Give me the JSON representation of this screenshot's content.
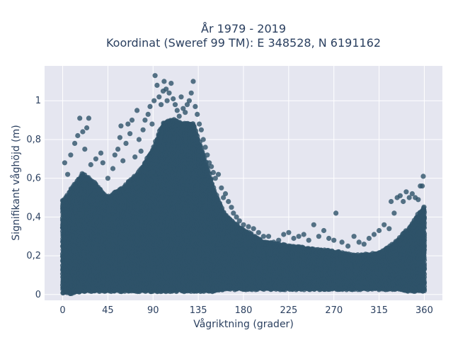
{
  "chart_data": {
    "type": "scatter",
    "title": [
      "År 1979 - 2019",
      "Koordinat (Sweref 99 TM): E 348528, N 6191162"
    ],
    "xlabel": "Vågriktning (grader)",
    "ylabel": "Signifikant våghöjd (m)",
    "xlim": [
      -18,
      378
    ],
    "ylim": [
      -0.03,
      1.18
    ],
    "xticks": [
      0,
      45,
      90,
      135,
      180,
      225,
      270,
      315,
      360
    ],
    "xtick_labels": [
      "0",
      "45",
      "90",
      "135",
      "180",
      "225",
      "270",
      "315",
      "360"
    ],
    "yticks": [
      0,
      0.2,
      0.4,
      0.6,
      0.8,
      1
    ],
    "ytick_labels": [
      "0",
      "0,2",
      "0,4",
      "0,6",
      "0,8",
      "1"
    ],
    "grid": true,
    "plot_background": "#e5e6f0",
    "marker_color": "#2e5269",
    "density_envelope": {
      "x": [
        0,
        10,
        20,
        30,
        45,
        60,
        75,
        90,
        100,
        110,
        120,
        130,
        140,
        150,
        160,
        170,
        180,
        200,
        225,
        250,
        270,
        290,
        315,
        330,
        345,
        355,
        360
      ],
      "y_min": [
        0.01,
        0.01,
        0.02,
        0.02,
        0.02,
        0.02,
        0.02,
        0.02,
        0.02,
        0.02,
        0.02,
        0.02,
        0.02,
        0.02,
        0.03,
        0.03,
        0.03,
        0.03,
        0.03,
        0.03,
        0.03,
        0.03,
        0.03,
        0.03,
        0.02,
        0.02,
        0.02
      ],
      "y_max": [
        0.48,
        0.55,
        0.62,
        0.58,
        0.5,
        0.55,
        0.62,
        0.75,
        0.88,
        0.9,
        0.88,
        0.88,
        0.72,
        0.55,
        0.42,
        0.37,
        0.33,
        0.27,
        0.25,
        0.23,
        0.22,
        0.2,
        0.21,
        0.26,
        0.34,
        0.42,
        0.45
      ]
    },
    "outliers": [
      {
        "x": 2,
        "y": 0.68
      },
      {
        "x": 5,
        "y": 0.62
      },
      {
        "x": 8,
        "y": 0.72
      },
      {
        "x": 12,
        "y": 0.78
      },
      {
        "x": 15,
        "y": 0.82
      },
      {
        "x": 17,
        "y": 0.91
      },
      {
        "x": 20,
        "y": 0.84
      },
      {
        "x": 22,
        "y": 0.75
      },
      {
        "x": 24,
        "y": 0.86
      },
      {
        "x": 26,
        "y": 0.91
      },
      {
        "x": 28,
        "y": 0.67
      },
      {
        "x": 33,
        "y": 0.7
      },
      {
        "x": 38,
        "y": 0.73
      },
      {
        "x": 40,
        "y": 0.68
      },
      {
        "x": 45,
        "y": 0.6
      },
      {
        "x": 50,
        "y": 0.65
      },
      {
        "x": 52,
        "y": 0.72
      },
      {
        "x": 55,
        "y": 0.75
      },
      {
        "x": 57,
        "y": 0.81
      },
      {
        "x": 58,
        "y": 0.87
      },
      {
        "x": 60,
        "y": 0.69
      },
      {
        "x": 63,
        "y": 0.78
      },
      {
        "x": 65,
        "y": 0.88
      },
      {
        "x": 67,
        "y": 0.83
      },
      {
        "x": 69,
        "y": 0.9
      },
      {
        "x": 72,
        "y": 0.71
      },
      {
        "x": 74,
        "y": 0.95
      },
      {
        "x": 76,
        "y": 0.8
      },
      {
        "x": 78,
        "y": 0.74
      },
      {
        "x": 80,
        "y": 0.85
      },
      {
        "x": 82,
        "y": 0.9
      },
      {
        "x": 85,
        "y": 0.93
      },
      {
        "x": 87,
        "y": 0.97
      },
      {
        "x": 89,
        "y": 0.88
      },
      {
        "x": 91,
        "y": 1.0
      },
      {
        "x": 92,
        "y": 1.13
      },
      {
        "x": 94,
        "y": 1.08
      },
      {
        "x": 96,
        "y": 1.02
      },
      {
        "x": 98,
        "y": 0.98
      },
      {
        "x": 100,
        "y": 1.05
      },
      {
        "x": 101,
        "y": 1.1
      },
      {
        "x": 103,
        "y": 1.06
      },
      {
        "x": 104,
        "y": 1.0
      },
      {
        "x": 106,
        "y": 1.04
      },
      {
        "x": 108,
        "y": 1.09
      },
      {
        "x": 110,
        "y": 1.01
      },
      {
        "x": 112,
        "y": 0.98
      },
      {
        "x": 114,
        "y": 0.95
      },
      {
        "x": 116,
        "y": 0.92
      },
      {
        "x": 118,
        "y": 1.02
      },
      {
        "x": 120,
        "y": 0.96
      },
      {
        "x": 122,
        "y": 0.94
      },
      {
        "x": 124,
        "y": 0.98
      },
      {
        "x": 126,
        "y": 1.0
      },
      {
        "x": 128,
        "y": 1.04
      },
      {
        "x": 130,
        "y": 1.1
      },
      {
        "x": 132,
        "y": 0.97
      },
      {
        "x": 134,
        "y": 0.93
      },
      {
        "x": 136,
        "y": 0.88
      },
      {
        "x": 138,
        "y": 0.85
      },
      {
        "x": 140,
        "y": 0.8
      },
      {
        "x": 142,
        "y": 0.76
      },
      {
        "x": 144,
        "y": 0.72
      },
      {
        "x": 146,
        "y": 0.68
      },
      {
        "x": 148,
        "y": 0.66
      },
      {
        "x": 150,
        "y": 0.63
      },
      {
        "x": 152,
        "y": 0.6
      },
      {
        "x": 155,
        "y": 0.62
      },
      {
        "x": 158,
        "y": 0.55
      },
      {
        "x": 160,
        "y": 0.5
      },
      {
        "x": 162,
        "y": 0.52
      },
      {
        "x": 165,
        "y": 0.48
      },
      {
        "x": 168,
        "y": 0.45
      },
      {
        "x": 170,
        "y": 0.42
      },
      {
        "x": 173,
        "y": 0.4
      },
      {
        "x": 176,
        "y": 0.38
      },
      {
        "x": 180,
        "y": 0.36
      },
      {
        "x": 185,
        "y": 0.35
      },
      {
        "x": 190,
        "y": 0.34
      },
      {
        "x": 195,
        "y": 0.32
      },
      {
        "x": 200,
        "y": 0.3
      },
      {
        "x": 205,
        "y": 0.3
      },
      {
        "x": 210,
        "y": 0.27
      },
      {
        "x": 215,
        "y": 0.28
      },
      {
        "x": 220,
        "y": 0.31
      },
      {
        "x": 225,
        "y": 0.32
      },
      {
        "x": 230,
        "y": 0.29
      },
      {
        "x": 235,
        "y": 0.3
      },
      {
        "x": 240,
        "y": 0.31
      },
      {
        "x": 245,
        "y": 0.28
      },
      {
        "x": 250,
        "y": 0.36
      },
      {
        "x": 255,
        "y": 0.3
      },
      {
        "x": 260,
        "y": 0.33
      },
      {
        "x": 265,
        "y": 0.29
      },
      {
        "x": 270,
        "y": 0.28
      },
      {
        "x": 272,
        "y": 0.42
      },
      {
        "x": 278,
        "y": 0.27
      },
      {
        "x": 284,
        "y": 0.25
      },
      {
        "x": 290,
        "y": 0.3
      },
      {
        "x": 295,
        "y": 0.27
      },
      {
        "x": 300,
        "y": 0.26
      },
      {
        "x": 305,
        "y": 0.29
      },
      {
        "x": 310,
        "y": 0.31
      },
      {
        "x": 315,
        "y": 0.33
      },
      {
        "x": 320,
        "y": 0.36
      },
      {
        "x": 325,
        "y": 0.34
      },
      {
        "x": 327,
        "y": 0.48
      },
      {
        "x": 330,
        "y": 0.42
      },
      {
        "x": 333,
        "y": 0.5
      },
      {
        "x": 336,
        "y": 0.51
      },
      {
        "x": 339,
        "y": 0.48
      },
      {
        "x": 342,
        "y": 0.53
      },
      {
        "x": 345,
        "y": 0.5
      },
      {
        "x": 348,
        "y": 0.52
      },
      {
        "x": 351,
        "y": 0.5
      },
      {
        "x": 354,
        "y": 0.49
      },
      {
        "x": 356,
        "y": 0.56
      },
      {
        "x": 358,
        "y": 0.56
      },
      {
        "x": 359,
        "y": 0.61
      }
    ]
  }
}
